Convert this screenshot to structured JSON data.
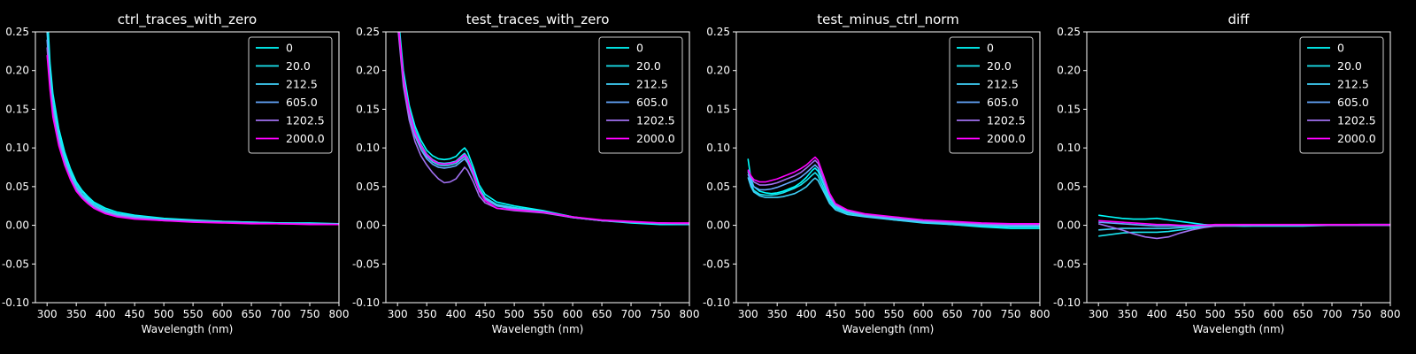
{
  "figure": {
    "background": "#000000",
    "foreground": "#ffffff"
  },
  "chart_data": [
    {
      "type": "line",
      "title": "ctrl_traces_with_zero",
      "xlabel": "Wavelength (nm)",
      "ylabel": "",
      "xlim": [
        280,
        800
      ],
      "ylim": [
        -0.1,
        0.25
      ],
      "xticks": [
        300,
        350,
        400,
        450,
        500,
        550,
        600,
        650,
        700,
        750,
        800
      ],
      "yticks": [
        -0.1,
        -0.05,
        0.0,
        0.05,
        0.1,
        0.15,
        0.2,
        0.25
      ],
      "grid": false,
      "legend": "top-right",
      "x": [
        300,
        305,
        310,
        320,
        330,
        340,
        350,
        360,
        370,
        380,
        400,
        420,
        450,
        500,
        550,
        600,
        650,
        700,
        750,
        800
      ],
      "series": [
        {
          "name": "0",
          "color": "#00ffff",
          "values": [
            0.28,
            0.21,
            0.17,
            0.125,
            0.095,
            0.073,
            0.056,
            0.045,
            0.037,
            0.03,
            0.022,
            0.017,
            0.013,
            0.009,
            0.007,
            0.005,
            0.004,
            0.003,
            0.003,
            0.002
          ]
        },
        {
          "name": "20.0",
          "color": "#1ae5f0",
          "values": [
            0.26,
            0.2,
            0.16,
            0.118,
            0.09,
            0.069,
            0.053,
            0.043,
            0.035,
            0.028,
            0.02,
            0.015,
            0.012,
            0.008,
            0.006,
            0.005,
            0.004,
            0.003,
            0.002,
            0.002
          ]
        },
        {
          "name": "212.5",
          "color": "#3fd0f8",
          "values": [
            0.25,
            0.19,
            0.155,
            0.114,
            0.086,
            0.066,
            0.05,
            0.04,
            0.033,
            0.026,
            0.018,
            0.014,
            0.011,
            0.007,
            0.006,
            0.004,
            0.003,
            0.003,
            0.002,
            0.002
          ]
        },
        {
          "name": "605.0",
          "color": "#65a8ff",
          "values": [
            0.24,
            0.185,
            0.15,
            0.11,
            0.083,
            0.063,
            0.048,
            0.038,
            0.031,
            0.025,
            0.017,
            0.013,
            0.01,
            0.007,
            0.005,
            0.004,
            0.003,
            0.002,
            0.002,
            0.001
          ]
        },
        {
          "name": "1202.5",
          "color": "#a070f0",
          "values": [
            0.23,
            0.18,
            0.145,
            0.106,
            0.08,
            0.061,
            0.046,
            0.036,
            0.029,
            0.023,
            0.016,
            0.012,
            0.009,
            0.006,
            0.005,
            0.004,
            0.003,
            0.002,
            0.002,
            0.001
          ]
        },
        {
          "name": "2000.0",
          "color": "#ff00ff",
          "values": [
            0.22,
            0.175,
            0.14,
            0.103,
            0.078,
            0.059,
            0.044,
            0.035,
            0.028,
            0.022,
            0.015,
            0.011,
            0.008,
            0.006,
            0.004,
            0.003,
            0.002,
            0.002,
            0.001,
            0.001
          ]
        }
      ]
    },
    {
      "type": "line",
      "title": "test_traces_with_zero",
      "xlabel": "Wavelength (nm)",
      "ylabel": "",
      "xlim": [
        280,
        800
      ],
      "ylim": [
        -0.1,
        0.25
      ],
      "xticks": [
        300,
        350,
        400,
        450,
        500,
        550,
        600,
        650,
        700,
        750,
        800
      ],
      "yticks": [
        -0.1,
        -0.05,
        0.0,
        0.05,
        0.1,
        0.15,
        0.2,
        0.25
      ],
      "grid": false,
      "legend": "top-right",
      "x": [
        300,
        305,
        310,
        320,
        330,
        340,
        350,
        360,
        370,
        380,
        390,
        400,
        410,
        415,
        420,
        430,
        440,
        450,
        470,
        500,
        550,
        600,
        650,
        700,
        750,
        800
      ],
      "series": [
        {
          "name": "0",
          "color": "#00ffff",
          "values": [
            0.28,
            0.24,
            0.2,
            0.155,
            0.128,
            0.11,
            0.097,
            0.09,
            0.086,
            0.085,
            0.086,
            0.089,
            0.097,
            0.1,
            0.095,
            0.075,
            0.052,
            0.04,
            0.03,
            0.025,
            0.019,
            0.011,
            0.006,
            0.003,
            0.001,
            0.001
          ]
        },
        {
          "name": "20.0",
          "color": "#1ae5f0",
          "values": [
            0.275,
            0.235,
            0.195,
            0.15,
            0.123,
            0.105,
            0.092,
            0.085,
            0.081,
            0.08,
            0.081,
            0.083,
            0.09,
            0.093,
            0.088,
            0.07,
            0.048,
            0.036,
            0.027,
            0.023,
            0.018,
            0.011,
            0.006,
            0.004,
            0.002,
            0.001
          ]
        },
        {
          "name": "212.5",
          "color": "#3fd0f8",
          "values": [
            0.27,
            0.23,
            0.19,
            0.146,
            0.119,
            0.102,
            0.089,
            0.082,
            0.078,
            0.077,
            0.078,
            0.08,
            0.086,
            0.089,
            0.084,
            0.067,
            0.046,
            0.035,
            0.026,
            0.022,
            0.017,
            0.01,
            0.006,
            0.004,
            0.002,
            0.002
          ]
        },
        {
          "name": "605.0",
          "color": "#65a8ff",
          "values": [
            0.265,
            0.225,
            0.185,
            0.142,
            0.115,
            0.098,
            0.086,
            0.079,
            0.075,
            0.074,
            0.075,
            0.077,
            0.083,
            0.086,
            0.081,
            0.064,
            0.044,
            0.034,
            0.025,
            0.021,
            0.017,
            0.01,
            0.006,
            0.004,
            0.003,
            0.002
          ]
        },
        {
          "name": "1202.5",
          "color": "#a070f0",
          "values": [
            0.26,
            0.22,
            0.18,
            0.136,
            0.108,
            0.09,
            0.078,
            0.068,
            0.06,
            0.055,
            0.056,
            0.06,
            0.07,
            0.075,
            0.071,
            0.056,
            0.038,
            0.029,
            0.022,
            0.019,
            0.016,
            0.01,
            0.006,
            0.004,
            0.003,
            0.002
          ]
        },
        {
          "name": "2000.0",
          "color": "#ff00ff",
          "values": [
            0.27,
            0.23,
            0.19,
            0.148,
            0.12,
            0.103,
            0.091,
            0.084,
            0.08,
            0.079,
            0.08,
            0.082,
            0.088,
            0.091,
            0.086,
            0.068,
            0.045,
            0.032,
            0.022,
            0.02,
            0.017,
            0.011,
            0.007,
            0.005,
            0.003,
            0.003
          ]
        }
      ]
    },
    {
      "type": "line",
      "title": "test_minus_ctrl_norm",
      "xlabel": "Wavelength (nm)",
      "ylabel": "",
      "xlim": [
        280,
        800
      ],
      "ylim": [
        -0.1,
        0.25
      ],
      "xticks": [
        300,
        350,
        400,
        450,
        500,
        550,
        600,
        650,
        700,
        750,
        800
      ],
      "yticks": [
        -0.1,
        -0.05,
        0.0,
        0.05,
        0.1,
        0.15,
        0.2,
        0.25
      ],
      "grid": false,
      "legend": "top-right",
      "x": [
        300,
        305,
        310,
        320,
        330,
        340,
        350,
        360,
        370,
        380,
        390,
        400,
        410,
        415,
        420,
        430,
        440,
        450,
        470,
        500,
        550,
        600,
        650,
        700,
        750,
        800
      ],
      "series": [
        {
          "name": "0",
          "color": "#00ffff",
          "values": [
            0.086,
            0.06,
            0.05,
            0.044,
            0.042,
            0.041,
            0.042,
            0.044,
            0.047,
            0.05,
            0.055,
            0.062,
            0.071,
            0.074,
            0.07,
            0.052,
            0.034,
            0.024,
            0.017,
            0.013,
            0.008,
            0.004,
            0.001,
            -0.002,
            -0.004,
            -0.004
          ]
        },
        {
          "name": "20.0",
          "color": "#1ae5f0",
          "values": [
            0.07,
            0.054,
            0.045,
            0.04,
            0.039,
            0.039,
            0.04,
            0.042,
            0.045,
            0.048,
            0.052,
            0.058,
            0.065,
            0.068,
            0.064,
            0.047,
            0.031,
            0.022,
            0.016,
            0.012,
            0.007,
            0.003,
            0.001,
            -0.001,
            -0.002,
            -0.002
          ]
        },
        {
          "name": "212.5",
          "color": "#3fd0f8",
          "values": [
            0.062,
            0.05,
            0.043,
            0.038,
            0.036,
            0.036,
            0.036,
            0.037,
            0.039,
            0.041,
            0.045,
            0.05,
            0.058,
            0.061,
            0.058,
            0.043,
            0.028,
            0.02,
            0.014,
            0.011,
            0.007,
            0.004,
            0.002,
            0.0,
            -0.001,
            -0.001
          ]
        },
        {
          "name": "605.0",
          "color": "#65a8ff",
          "values": [
            0.066,
            0.056,
            0.05,
            0.046,
            0.046,
            0.047,
            0.049,
            0.052,
            0.055,
            0.058,
            0.062,
            0.068,
            0.075,
            0.078,
            0.074,
            0.055,
            0.036,
            0.025,
            0.018,
            0.013,
            0.009,
            0.005,
            0.003,
            0.001,
            0.0,
            0.0
          ]
        },
        {
          "name": "1202.5",
          "color": "#a070f0",
          "values": [
            0.07,
            0.062,
            0.056,
            0.052,
            0.052,
            0.053,
            0.055,
            0.058,
            0.061,
            0.064,
            0.068,
            0.074,
            0.081,
            0.084,
            0.08,
            0.06,
            0.039,
            0.027,
            0.019,
            0.014,
            0.01,
            0.006,
            0.004,
            0.002,
            0.001,
            0.001
          ]
        },
        {
          "name": "2000.0",
          "color": "#ff00ff",
          "values": [
            0.072,
            0.064,
            0.059,
            0.056,
            0.056,
            0.058,
            0.06,
            0.063,
            0.066,
            0.069,
            0.073,
            0.078,
            0.085,
            0.088,
            0.084,
            0.063,
            0.041,
            0.028,
            0.02,
            0.015,
            0.011,
            0.007,
            0.005,
            0.003,
            0.002,
            0.002
          ]
        }
      ]
    },
    {
      "type": "line",
      "title": "diff",
      "xlabel": "Wavelength (nm)",
      "ylabel": "",
      "xlim": [
        280,
        800
      ],
      "ylim": [
        -0.1,
        0.25
      ],
      "xticks": [
        300,
        350,
        400,
        450,
        500,
        550,
        600,
        650,
        700,
        750,
        800
      ],
      "yticks": [
        -0.1,
        -0.05,
        0.0,
        0.05,
        0.1,
        0.15,
        0.2,
        0.25
      ],
      "grid": false,
      "legend": "top-right",
      "x": [
        300,
        320,
        340,
        360,
        380,
        400,
        420,
        440,
        460,
        480,
        500,
        550,
        600,
        650,
        700,
        750,
        800
      ],
      "series": [
        {
          "name": "0",
          "color": "#00ffff",
          "values": [
            0.013,
            0.011,
            0.009,
            0.008,
            0.008,
            0.009,
            0.007,
            0.005,
            0.003,
            0.001,
            0.0,
            -0.001,
            -0.001,
            -0.001,
            0.0,
            0.0,
            0.0
          ]
        },
        {
          "name": "20.0",
          "color": "#1ae5f0",
          "values": [
            -0.014,
            -0.012,
            -0.01,
            -0.009,
            -0.009,
            -0.009,
            -0.008,
            -0.006,
            -0.004,
            -0.002,
            -0.001,
            -0.001,
            0.0,
            0.0,
            0.0,
            0.001,
            0.001
          ]
        },
        {
          "name": "212.5",
          "color": "#3fd0f8",
          "values": [
            -0.006,
            -0.005,
            -0.004,
            -0.004,
            -0.004,
            -0.004,
            -0.004,
            -0.003,
            -0.002,
            -0.001,
            0.0,
            0.0,
            0.0,
            0.0,
            0.0,
            0.0,
            0.0
          ]
        },
        {
          "name": "605.0",
          "color": "#65a8ff",
          "values": [
            0.004,
            0.003,
            0.002,
            0.001,
            0.0,
            -0.001,
            -0.001,
            -0.001,
            -0.001,
            0.0,
            0.0,
            0.0,
            0.0,
            0.0,
            0.0,
            0.0,
            0.0
          ]
        },
        {
          "name": "1202.5",
          "color": "#a070f0",
          "values": [
            0.002,
            -0.002,
            -0.006,
            -0.011,
            -0.015,
            -0.017,
            -0.015,
            -0.01,
            -0.006,
            -0.003,
            -0.001,
            0.0,
            0.0,
            0.0,
            0.0,
            0.0,
            0.0
          ]
        },
        {
          "name": "2000.0",
          "color": "#ff00ff",
          "values": [
            0.006,
            0.005,
            0.004,
            0.003,
            0.002,
            0.001,
            0.001,
            0.0,
            0.0,
            0.0,
            0.001,
            0.001,
            0.001,
            0.001,
            0.001,
            0.001,
            0.001
          ]
        }
      ]
    }
  ]
}
